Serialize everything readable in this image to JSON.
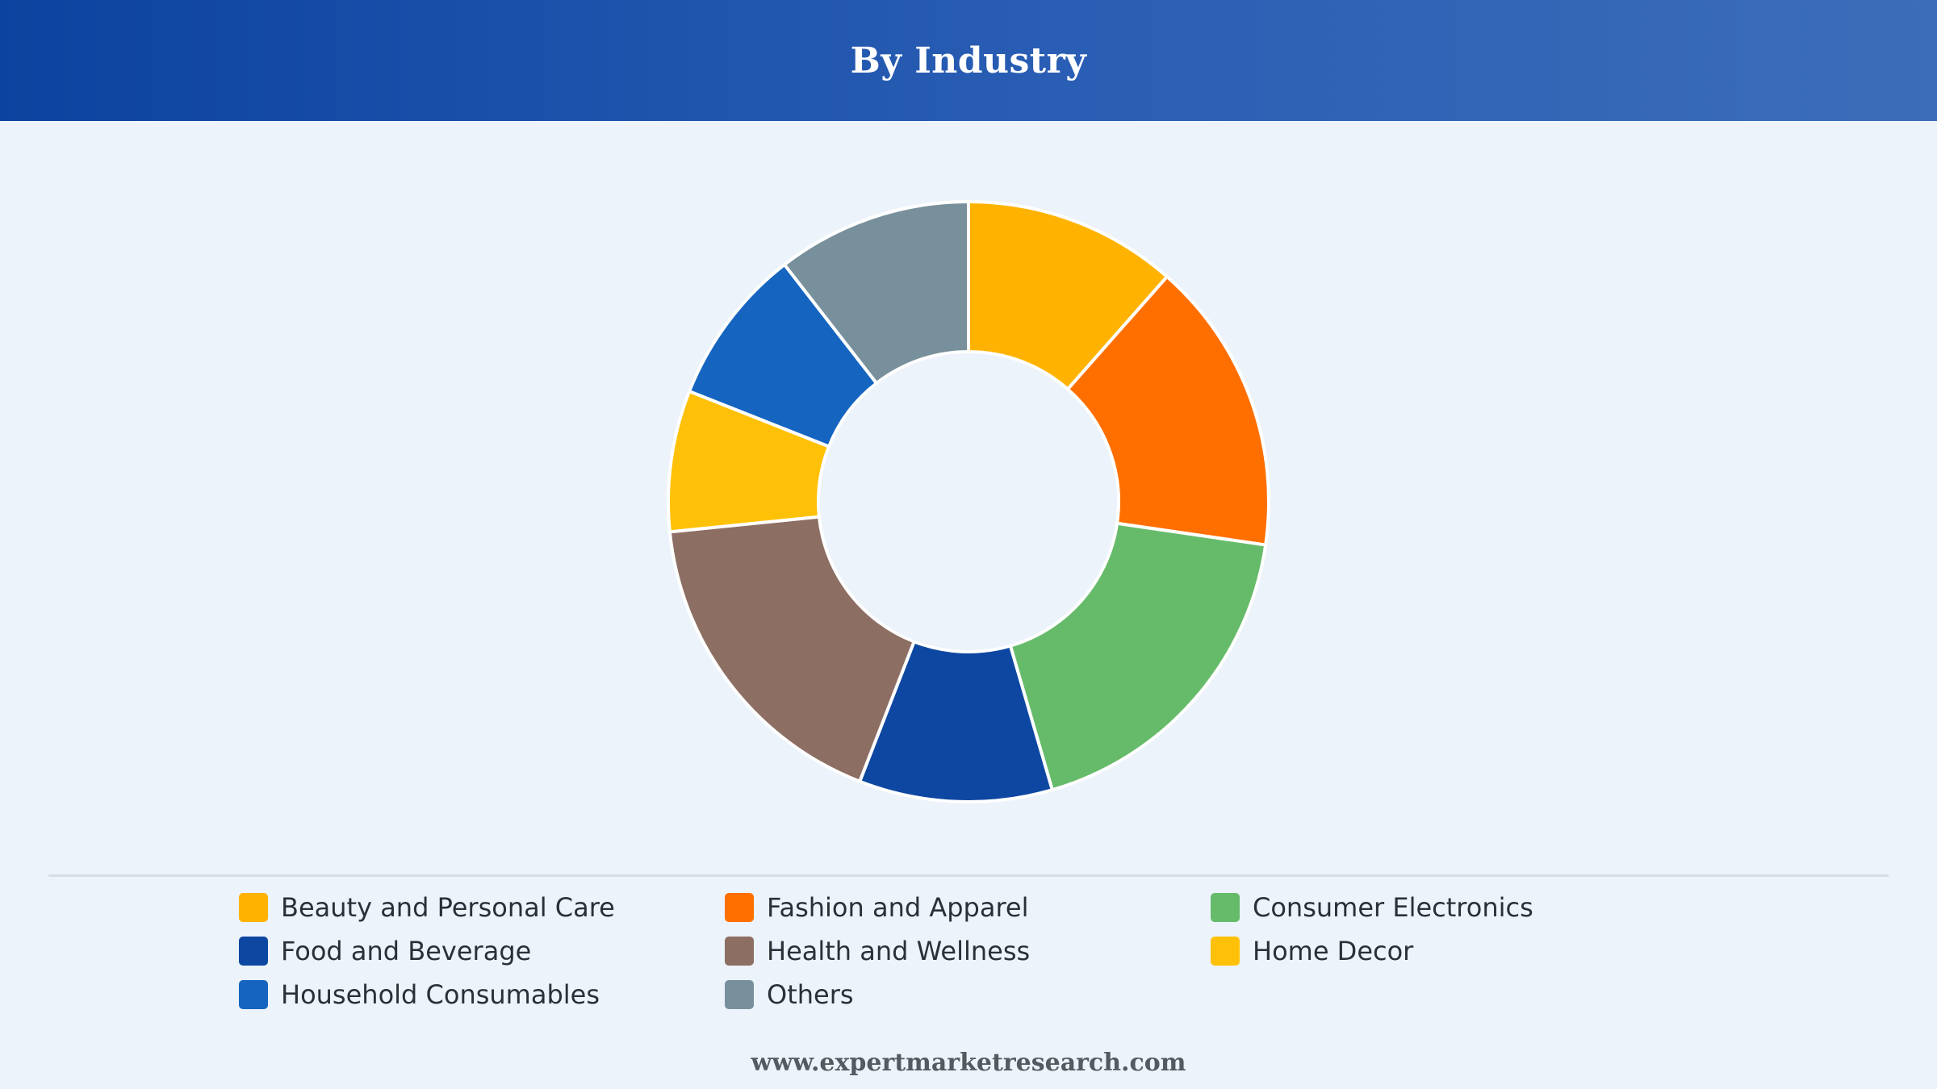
{
  "header": {
    "title": "By Industry"
  },
  "chart_data": {
    "type": "pie",
    "variant": "donut",
    "title": "By Industry",
    "legend_position": "bottom",
    "categories": [
      "Beauty and Personal Care",
      "Fashion and Apparel",
      "Consumer Electronics",
      "Food and Beverage",
      "Health and Wellness",
      "Home Decor",
      "Household Consumables",
      "Others"
    ],
    "series": [
      {
        "values": [
          11.5,
          15.8,
          18.2,
          10.4,
          17.5,
          7.6,
          8.5,
          10.5
        ]
      }
    ],
    "colors": [
      "#ffb300",
      "#ff6f00",
      "#66bb6a",
      "#0d47a1",
      "#8d6e63",
      "#ffc107",
      "#1565c0",
      "#78909c"
    ],
    "draw_order": [
      0,
      1,
      2,
      3,
      4,
      5,
      6,
      7
    ]
  },
  "legend": {
    "items": [
      {
        "label": "Beauty and Personal Care",
        "color": "#ffb300"
      },
      {
        "label": "Fashion and Apparel",
        "color": "#ff6f00"
      },
      {
        "label": "Consumer Electronics",
        "color": "#66bb6a"
      },
      {
        "label": "Food and Beverage",
        "color": "#0d47a1"
      },
      {
        "label": "Health and Wellness",
        "color": "#8d6e63"
      },
      {
        "label": "Home Decor",
        "color": "#ffc107"
      },
      {
        "label": "Household Consumables",
        "color": "#1565c0"
      },
      {
        "label": "Others",
        "color": "#78909c"
      }
    ]
  },
  "footer": {
    "text": "www.expertmarketresearch.com"
  },
  "colors": {
    "header_start": "#0c43a0",
    "header_end": "#3b6db8",
    "background": "#ecf3fb",
    "slice_border": "#ffffff"
  }
}
